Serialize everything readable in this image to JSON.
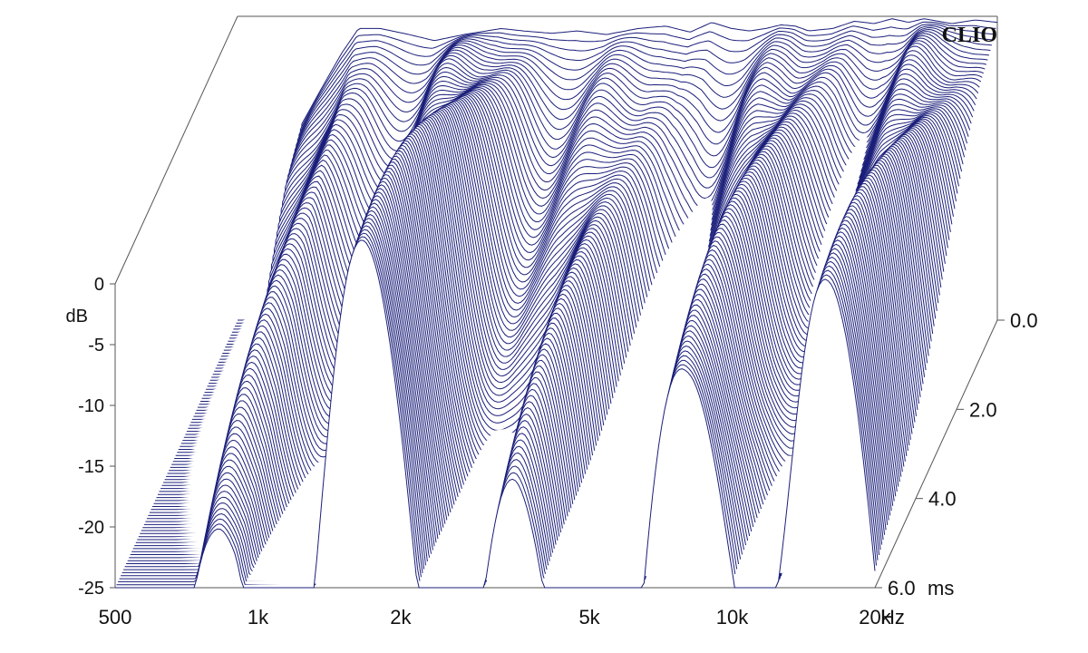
{
  "brand": "CLIO",
  "chart_data": {
    "type": "waterfall-3d",
    "y_axis": {
      "unit": "dB",
      "ticks": [
        "0",
        "-5",
        "-10",
        "-15",
        "-20",
        "-25"
      ],
      "range": [
        -25,
        0
      ]
    },
    "x_axis": {
      "unit": "Hz",
      "scale": "log",
      "ticks": [
        "500",
        "1k",
        "2k",
        "5k",
        "10k",
        "20k"
      ],
      "tick_values": [
        500,
        1000,
        2000,
        5000,
        10000,
        20000
      ],
      "range": [
        500,
        20000
      ]
    },
    "z_axis": {
      "unit": "ms",
      "ticks": [
        "0.0",
        "2.0",
        "4.0",
        "6.0"
      ],
      "tick_values": [
        0,
        2,
        4,
        6
      ],
      "range": [
        0,
        6
      ]
    },
    "front_slice_db": {
      "freq_hz": [
        680,
        750,
        830,
        900,
        1000,
        1150,
        1300,
        1500,
        1800,
        2000,
        2300,
        2600,
        3000,
        3500,
        4000,
        4500,
        5000,
        5500,
        6000,
        6500,
        7000,
        7500,
        8000,
        9000,
        10000,
        11000,
        12000,
        13000,
        14000,
        15000,
        16000,
        18000,
        20000
      ],
      "level_db": [
        -9,
        -6,
        -3,
        -1,
        -1,
        -1.5,
        -2,
        -1.5,
        -1,
        -1.2,
        -1.4,
        -1.2,
        -1.5,
        -1,
        -0.8,
        -1.3,
        -0.5,
        -1,
        -1.2,
        -1,
        -0.7,
        -0.8,
        -1.2,
        -1,
        -0.4,
        -0.6,
        -0.2,
        -0.5,
        -0.2,
        -0.4,
        -0.6,
        -0.3,
        -0.5
      ]
    },
    "colors": {
      "lines": "#1b1f7a",
      "axes": "#555555"
    }
  }
}
